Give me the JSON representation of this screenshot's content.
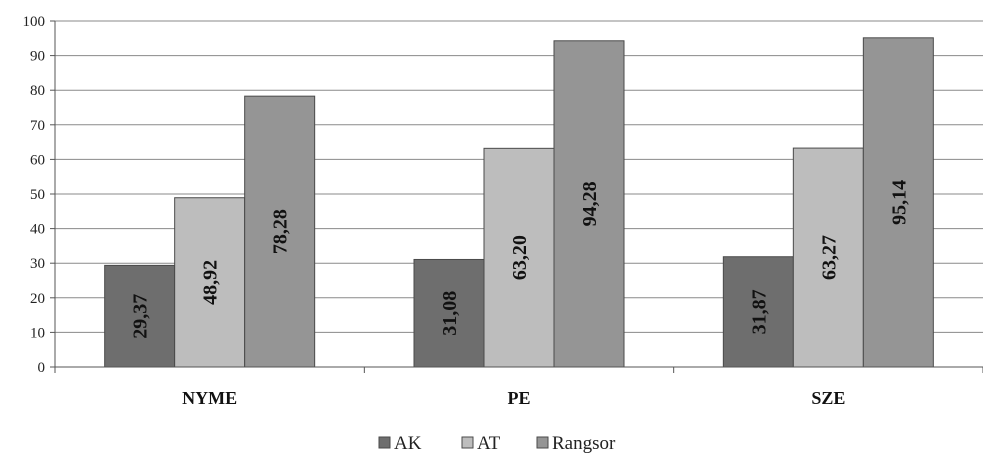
{
  "chart_data": {
    "type": "bar",
    "categories": [
      "NYME",
      "PE",
      "SZE"
    ],
    "series": [
      {
        "name": "AK",
        "values": [
          29.37,
          31.08,
          31.87
        ],
        "labels": [
          "29,37",
          "31,08",
          "31,87"
        ],
        "color": "#6e6e6e"
      },
      {
        "name": "AT",
        "values": [
          48.92,
          63.2,
          63.27
        ],
        "labels": [
          "48,92",
          "63,20",
          "63,27"
        ],
        "color": "#bdbdbd"
      },
      {
        "name": "Rangsor",
        "values": [
          78.28,
          94.28,
          95.14
        ],
        "labels": [
          "78,28",
          "94,28",
          "95,14"
        ],
        "color": "#959595"
      }
    ],
    "yticks": [
      "0",
      "10",
      "20",
      "30",
      "40",
      "50",
      "60",
      "70",
      "80",
      "90",
      "100"
    ],
    "ylim": [
      0,
      100
    ],
    "grid": true,
    "legend_position": "bottom-center",
    "title": "",
    "xlabel": "",
    "ylabel": ""
  }
}
